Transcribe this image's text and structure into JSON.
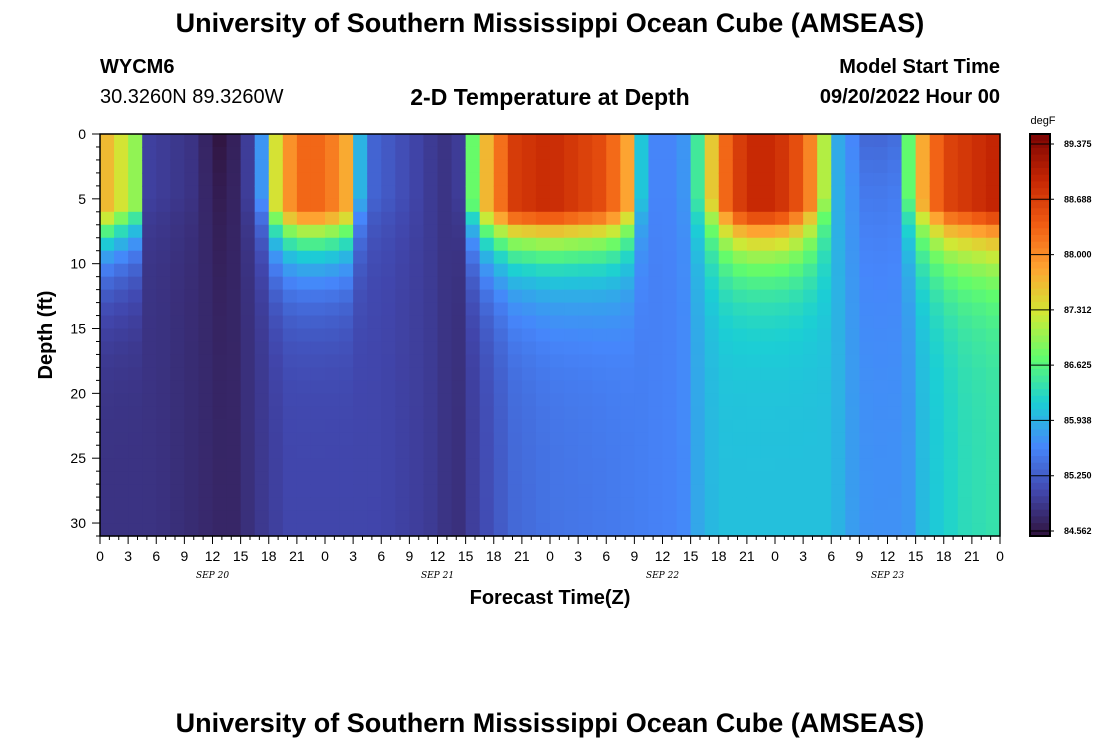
{
  "header": {
    "title": "University of Southern Mississippi Ocean Cube (AMSEAS)",
    "station": "WYCM6",
    "coords": "30.3260N  89.3260W",
    "subtitle": "2-D Temperature at Depth",
    "model_start_label": "Model Start Time",
    "model_start_value": "09/20/2022 Hour 00"
  },
  "footer": {
    "title": "University of Southern Mississippi Ocean Cube (AMSEAS)"
  },
  "chart_data": {
    "type": "heatmap",
    "title": "2-D Temperature at Depth",
    "xlabel": "Forecast Time(Z)",
    "ylabel": "Depth (ft)",
    "x_ticks": [
      "0",
      "3",
      "6",
      "9",
      "12",
      "15",
      "18",
      "21",
      "0",
      "3",
      "6",
      "9",
      "12",
      "15",
      "18",
      "21",
      "0",
      "3",
      "6",
      "9",
      "12",
      "15",
      "18",
      "21",
      "0",
      "3",
      "6",
      "9",
      "12",
      "15",
      "18",
      "21",
      "0"
    ],
    "x_range_hours": [
      0,
      96
    ],
    "date_labels": [
      {
        "label": "SEP 20",
        "hour": 12
      },
      {
        "label": "SEP 21",
        "hour": 36
      },
      {
        "label": "SEP 22",
        "hour": 60
      },
      {
        "label": "SEP 23",
        "hour": 84
      }
    ],
    "y_ticks": [
      0,
      5,
      10,
      15,
      20,
      25,
      30
    ],
    "ylim": [
      0,
      31
    ],
    "y_inverted": true,
    "colorbar": {
      "unit": "degF",
      "range": [
        84.5,
        89.5
      ],
      "ticks": [
        "89.375",
        "88.688",
        "88.000",
        "87.312",
        "86.625",
        "85.938",
        "85.250",
        "84.562"
      ],
      "colors": [
        "#30123b",
        "#4146ac",
        "#4686fb",
        "#1bcfd4",
        "#61fc6c",
        "#d1e834",
        "#fea331",
        "#f05b12",
        "#c42503",
        "#7a0403"
      ]
    },
    "temperature_model": {
      "bottom_layer_degF_by_hour": [
        [
          0,
          84.85
        ],
        [
          6,
          84.85
        ],
        [
          11,
          84.75
        ],
        [
          14,
          84.7
        ],
        [
          17,
          84.9
        ],
        [
          20,
          85.05
        ],
        [
          24,
          85.05
        ],
        [
          30,
          85.05
        ],
        [
          35,
          84.95
        ],
        [
          38,
          84.8
        ],
        [
          40,
          85.0
        ],
        [
          44,
          85.35
        ],
        [
          48,
          85.45
        ],
        [
          54,
          85.5
        ],
        [
          58,
          85.55
        ],
        [
          62,
          85.6
        ],
        [
          64,
          85.9
        ],
        [
          66,
          86.05
        ],
        [
          72,
          86.05
        ],
        [
          78,
          86.05
        ],
        [
          80,
          85.8
        ],
        [
          82,
          85.7
        ],
        [
          86,
          85.7
        ],
        [
          88,
          86.05
        ],
        [
          92,
          86.3
        ],
        [
          96,
          86.4
        ]
      ],
      "surface_layer_degF_by_hour": [
        [
          0,
          87.8
        ],
        [
          1,
          87.6
        ],
        [
          4,
          86.9
        ],
        [
          5,
          85.0
        ],
        [
          10,
          84.85
        ],
        [
          13,
          84.5
        ],
        [
          15,
          84.75
        ],
        [
          17,
          85.3
        ],
        [
          18,
          87.0
        ],
        [
          21,
          88.3
        ],
        [
          24,
          88.3
        ],
        [
          27,
          87.6
        ],
        [
          28,
          85.4
        ],
        [
          35,
          84.95
        ],
        [
          38,
          84.8
        ],
        [
          39,
          85.4
        ],
        [
          40,
          87.2
        ],
        [
          44,
          88.7
        ],
        [
          48,
          88.9
        ],
        [
          54,
          88.5
        ],
        [
          57,
          87.6
        ],
        [
          58,
          85.6
        ],
        [
          62,
          85.6
        ],
        [
          64,
          86.6
        ],
        [
          66,
          88.1
        ],
        [
          69,
          88.9
        ],
        [
          72,
          88.9
        ],
        [
          75,
          88.4
        ],
        [
          77,
          87.5
        ],
        [
          78,
          86.0
        ],
        [
          82,
          85.3
        ],
        [
          85,
          85.4
        ],
        [
          87,
          87.5
        ],
        [
          90,
          88.6
        ],
        [
          96,
          89.0
        ]
      ]
    }
  }
}
